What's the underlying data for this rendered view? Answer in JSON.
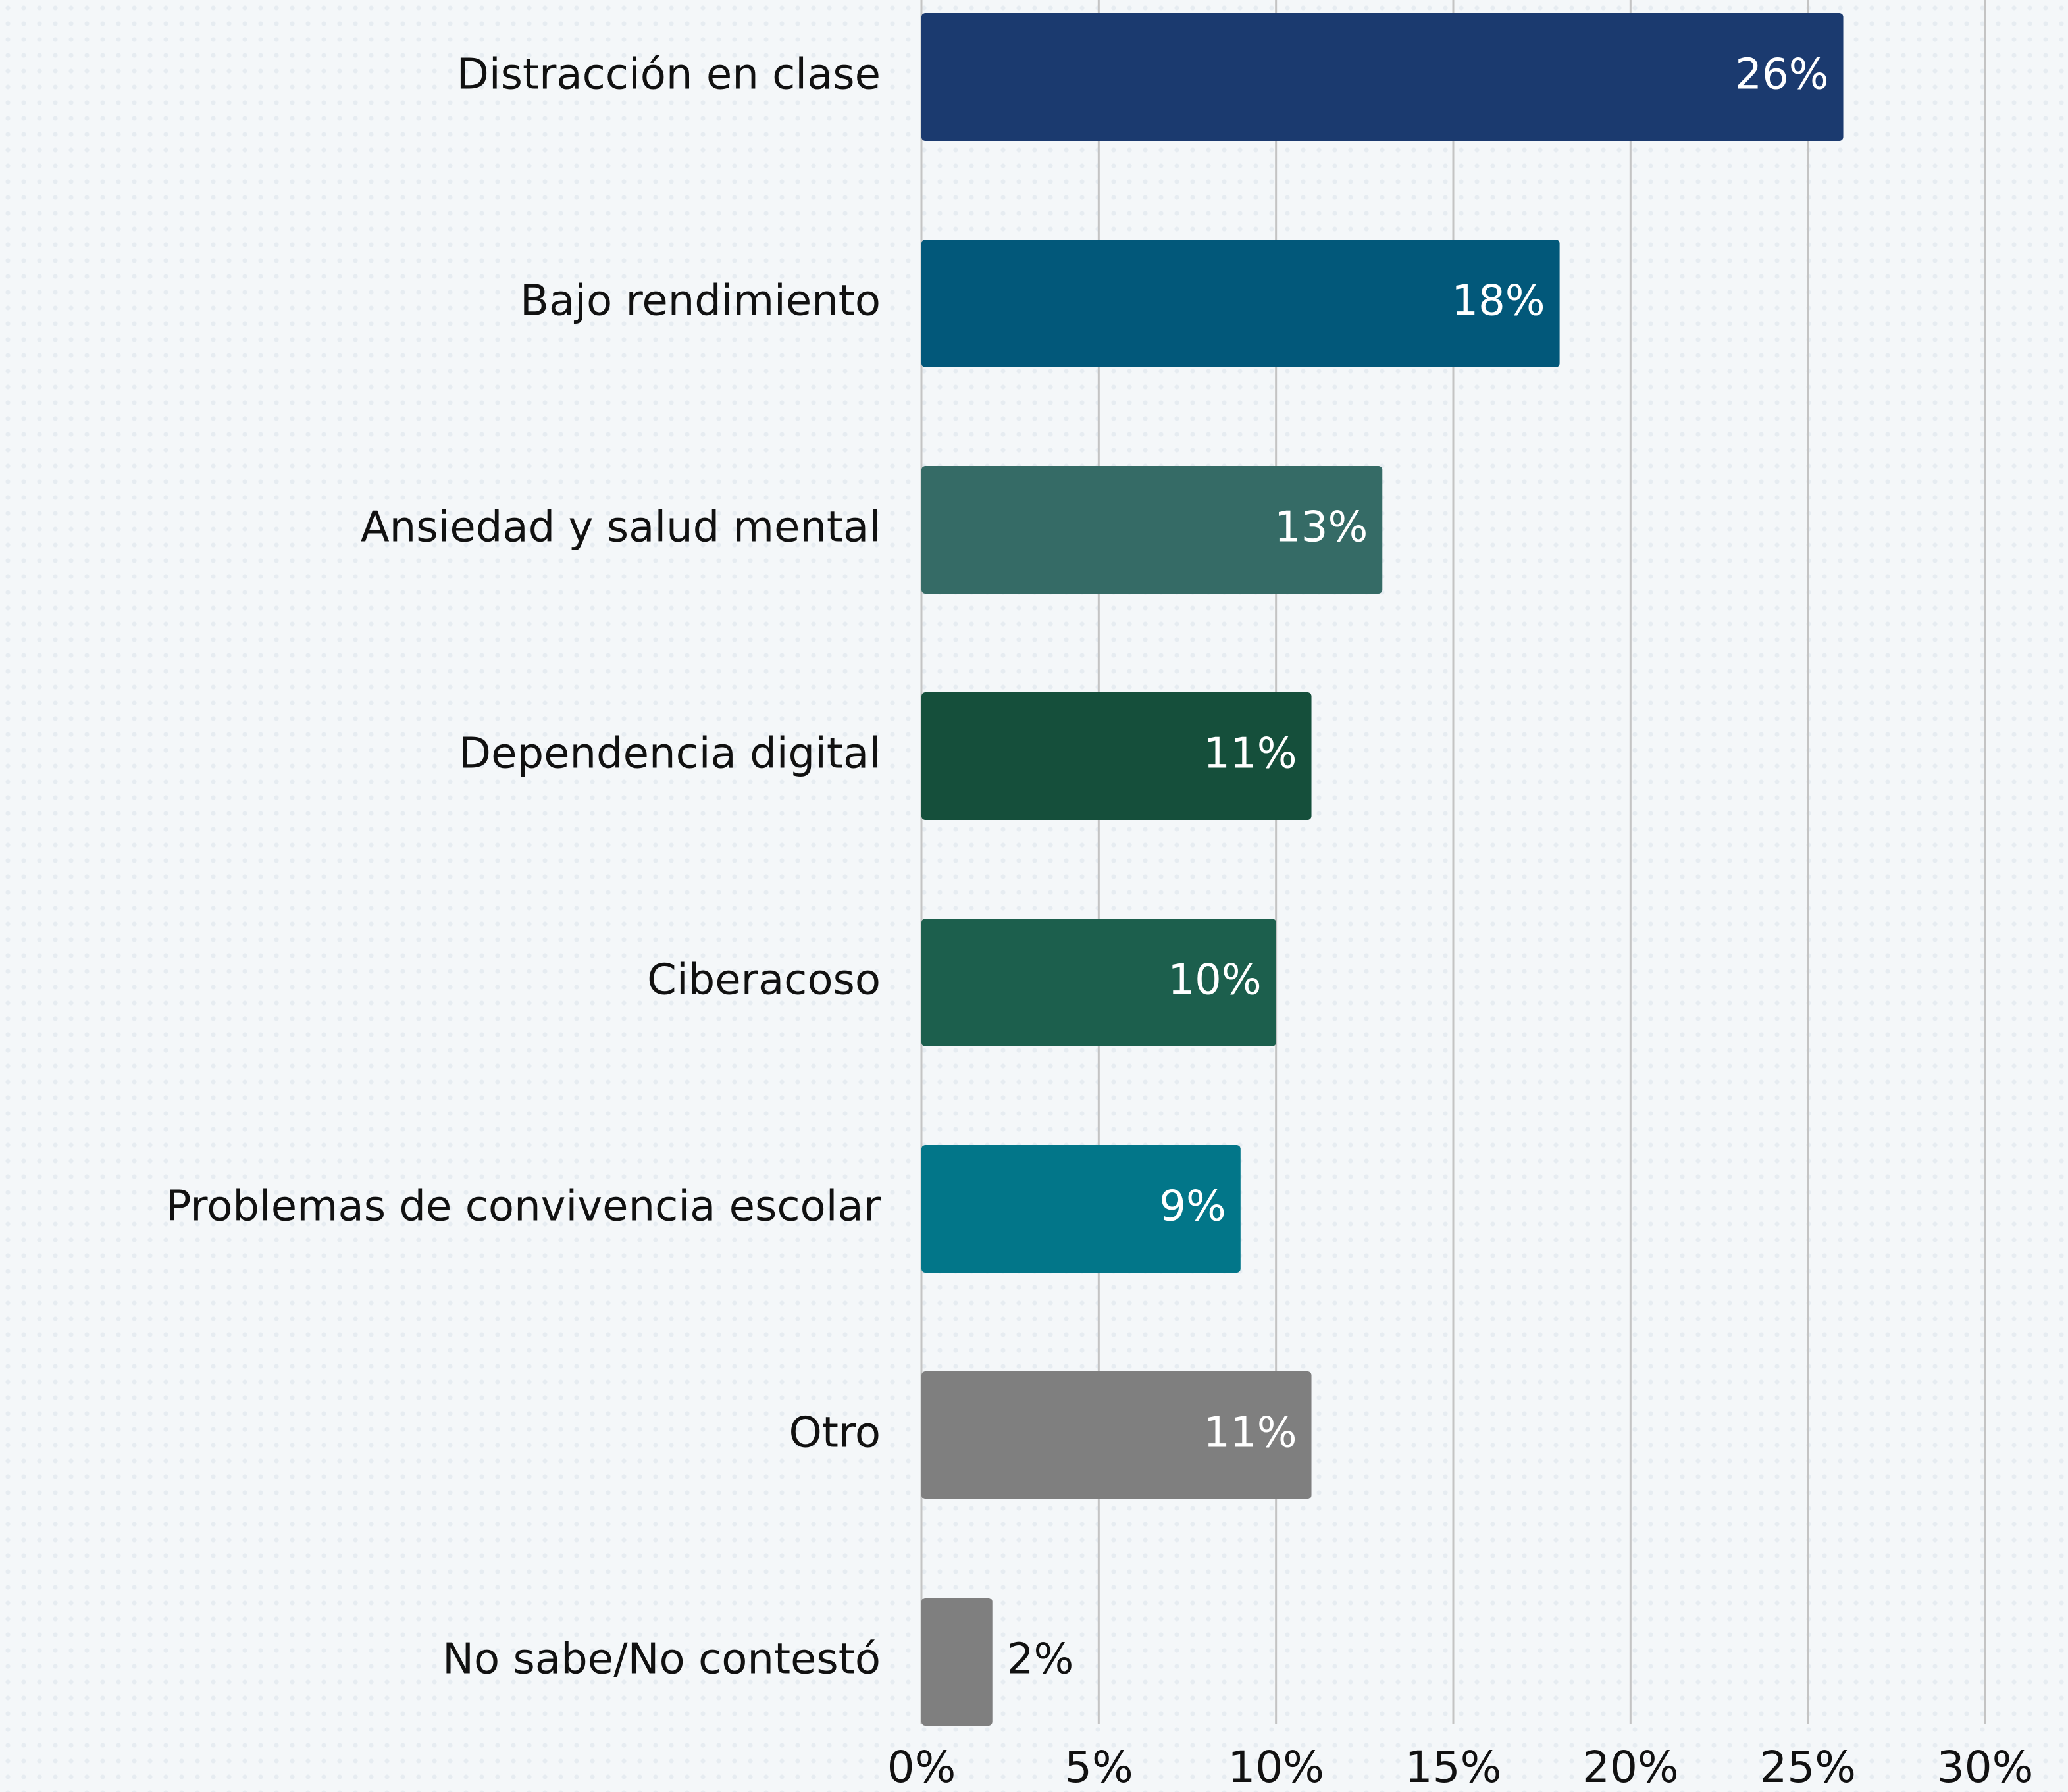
{
  "chart_data": {
    "type": "hbar",
    "categories": [
      "Distracción en clase",
      "Bajo rendimiento",
      "Ansiedad y salud mental",
      "Dependencia digital",
      "Ciberacoso",
      "Problemas de convivencia escolar",
      "Otro",
      "No sabe/No contestó"
    ],
    "values": [
      26,
      18,
      13,
      11,
      10,
      9,
      11,
      2
    ],
    "value_labels": [
      "26%",
      "18%",
      "13%",
      "11%",
      "10%",
      "9%",
      "11%",
      "2%"
    ],
    "colors": [
      "#1b3a6f",
      "#02587a",
      "#356b66",
      "#154f3b",
      "#1c5f4d",
      "#027689",
      "#7f7f7f",
      "#7f7f7f"
    ],
    "xlim": [
      0,
      30
    ],
    "xticks": [
      {
        "value": 0,
        "label": "0%"
      },
      {
        "value": 5,
        "label": "5%"
      },
      {
        "value": 10,
        "label": "10%"
      },
      {
        "value": 15,
        "label": "15%"
      },
      {
        "value": 20,
        "label": "20%"
      },
      {
        "value": 25,
        "label": "25%"
      },
      {
        "value": 30,
        "label": "30%"
      }
    ],
    "grid": true
  }
}
